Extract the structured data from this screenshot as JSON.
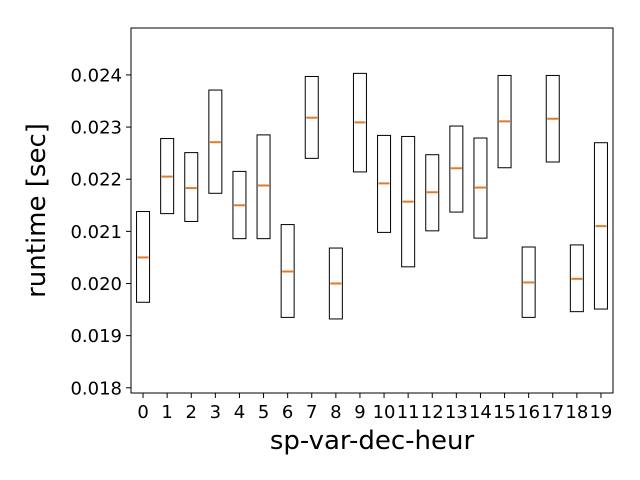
{
  "chart_data": {
    "type": "box",
    "title": "",
    "xlabel": "sp-var-dec-heur",
    "ylabel": "runtime [sec]",
    "ylim": [
      0.0179,
      0.0249
    ],
    "yticks": [
      0.018,
      0.019,
      0.02,
      0.021,
      0.022,
      0.023,
      0.024
    ],
    "ytick_labels": [
      "0.018",
      "0.019",
      "0.020",
      "0.021",
      "0.022",
      "0.023",
      "0.024"
    ],
    "categories": [
      "0",
      "1",
      "2",
      "3",
      "4",
      "5",
      "6",
      "7",
      "8",
      "9",
      "10",
      "11",
      "12",
      "13",
      "14",
      "15",
      "16",
      "17",
      "18",
      "19"
    ],
    "boxes": [
      {
        "q1": 0.01964,
        "median": 0.0205,
        "q3": 0.02138
      },
      {
        "q1": 0.02134,
        "median": 0.02205,
        "q3": 0.02278
      },
      {
        "q1": 0.02119,
        "median": 0.02183,
        "q3": 0.02251
      },
      {
        "q1": 0.02173,
        "median": 0.02271,
        "q3": 0.02371
      },
      {
        "q1": 0.02086,
        "median": 0.0215,
        "q3": 0.02215
      },
      {
        "q1": 0.02086,
        "median": 0.02188,
        "q3": 0.02285
      },
      {
        "q1": 0.01935,
        "median": 0.02023,
        "q3": 0.02113
      },
      {
        "q1": 0.0224,
        "median": 0.02318,
        "q3": 0.02397
      },
      {
        "q1": 0.01932,
        "median": 0.02,
        "q3": 0.02068
      },
      {
        "q1": 0.02214,
        "median": 0.02309,
        "q3": 0.02403
      },
      {
        "q1": 0.02098,
        "median": 0.02192,
        "q3": 0.02284
      },
      {
        "q1": 0.02032,
        "median": 0.02157,
        "q3": 0.02282
      },
      {
        "q1": 0.02101,
        "median": 0.02175,
        "q3": 0.02247
      },
      {
        "q1": 0.02137,
        "median": 0.02221,
        "q3": 0.02302
      },
      {
        "q1": 0.02087,
        "median": 0.02184,
        "q3": 0.02279
      },
      {
        "q1": 0.02222,
        "median": 0.02311,
        "q3": 0.02399
      },
      {
        "q1": 0.01935,
        "median": 0.02002,
        "q3": 0.0207
      },
      {
        "q1": 0.02233,
        "median": 0.02316,
        "q3": 0.02399
      },
      {
        "q1": 0.01946,
        "median": 0.02009,
        "q3": 0.02074
      },
      {
        "q1": 0.01951,
        "median": 0.0211,
        "q3": 0.0227
      }
    ],
    "colors": {
      "box": "#000000",
      "median": "#e07b2d",
      "axes": "#000000"
    },
    "grid": false,
    "legend": "none"
  }
}
